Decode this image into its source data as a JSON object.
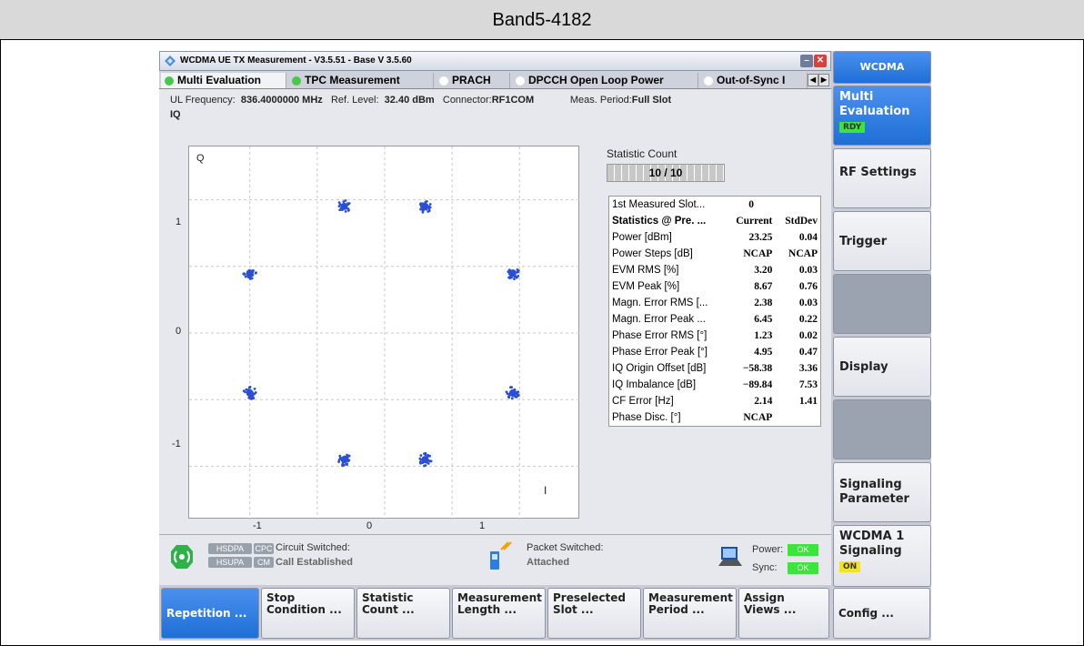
{
  "banner": {
    "title": "Band5-4182"
  },
  "window": {
    "title": "WCDMA UE TX Measurement  - V3.5.51 - Base V 3.5.60",
    "tabs": [
      {
        "label": "Multi Evaluation",
        "active": true,
        "dot": "#48c848"
      },
      {
        "label": "TPC Measurement",
        "active": false,
        "dot": "#48c848"
      },
      {
        "label": "PRACH",
        "active": false,
        "dot": "#ffffff"
      },
      {
        "label": "DPCCH Open Loop Power",
        "active": false,
        "dot": "#ffffff"
      },
      {
        "label": "Out-of-Sync I",
        "active": false,
        "dot": "#ffffff"
      }
    ]
  },
  "info": {
    "ul_freq_label": "UL Frequency:",
    "ul_freq_value": "836.4000000 MHz",
    "ref_level_label": "Ref. Level:",
    "ref_level_value": "32.40 dBm",
    "connector_label": "Connector:",
    "connector_value": "RF1COM",
    "meas_period_label": "Meas. Period:",
    "meas_period_value": "Full Slot",
    "view_label": "IQ"
  },
  "plot": {
    "q_label": "Q",
    "i_label": "I",
    "y_ticks": [
      "1",
      "0",
      "-1"
    ],
    "x_ticks": [
      "-1",
      "0",
      "1"
    ]
  },
  "chart_data": {
    "type": "scatter",
    "title": "IQ",
    "xlabel": "I",
    "ylabel": "Q",
    "xlim": [
      -1.45,
      1.45
    ],
    "ylim": [
      -1.4,
      1.4
    ],
    "grid": true,
    "series": [
      {
        "values": [
          [
            -0.3,
            0.95
          ],
          [
            0.3,
            0.95
          ],
          [
            -1.0,
            0.45
          ],
          [
            0.95,
            0.45
          ],
          [
            -1.0,
            -0.45
          ],
          [
            0.95,
            -0.45
          ],
          [
            -0.3,
            -0.95
          ],
          [
            0.3,
            -0.95
          ]
        ]
      }
    ],
    "color": "#2a4fd6"
  },
  "statistic": {
    "label": "Statistic Count",
    "value": "10 / 10",
    "fraction": 1.0
  },
  "stats_table": {
    "first_slot_label": "1st Measured Slot...",
    "first_slot_value": "0",
    "header": [
      "Statistics @ Pre. ...",
      "Current",
      "StdDev"
    ],
    "rows": [
      [
        "Power [dBm]",
        "23.25",
        "0.04"
      ],
      [
        "Power Steps [dB]",
        "NCAP",
        "NCAP"
      ],
      [
        "EVM RMS [%]",
        "3.20",
        "0.03"
      ],
      [
        "EVM Peak [%]",
        "8.67",
        "0.76"
      ],
      [
        "Magn. Error RMS [...",
        "2.38",
        "0.03"
      ],
      [
        "Magn. Error Peak ...",
        "6.45",
        "0.22"
      ],
      [
        "Phase Error RMS [°]",
        "1.23",
        "0.02"
      ],
      [
        "Phase Error Peak [°]",
        "4.95",
        "0.47"
      ],
      [
        "IQ Origin Offset [dB]",
        "−58.38",
        "3.36"
      ],
      [
        "IQ Imbalance [dB]",
        "−89.84",
        "7.53"
      ],
      [
        "CF Error [Hz]",
        "2.14",
        "1.41"
      ],
      [
        "Phase Disc. [°]",
        "NCAP",
        ""
      ]
    ]
  },
  "status": {
    "hsdpa": "HSDPA",
    "cpc": "CPC",
    "hsupa": "HSUPA",
    "cm": "CM",
    "circuit_label": "Circuit Switched:",
    "circuit_value": "Call Established",
    "packet_label": "Packet Switched:",
    "packet_value": "Attached",
    "power_label": "Power:",
    "power_value": "OK",
    "sync_label": "Sync:",
    "sync_value": "OK"
  },
  "softkeys": [
    "Repetition ...",
    "Stop Condition ...",
    "Statistic Count ...",
    "Measurement Length ...",
    "Preselected Slot ...",
    "Measurement Period ...",
    "Assign Views ...",
    "Config ..."
  ],
  "sidebar": {
    "head": "WCDMA",
    "multi_eval": "Multi Evaluation",
    "multi_eval_badge": "RDY",
    "rf_settings": "RF Settings",
    "trigger": "Trigger",
    "display": "Display",
    "signaling_param": "Signaling Parameter",
    "wcdma_signaling": "WCDMA 1 Signaling",
    "wcdma_signaling_badge": "ON"
  }
}
